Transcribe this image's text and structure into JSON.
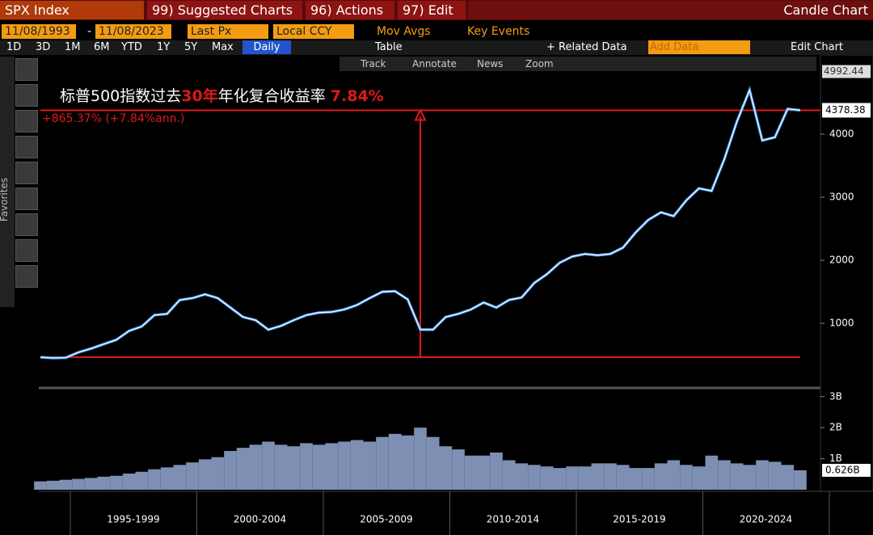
{
  "toolbar": {
    "security": "SPX Index",
    "menus": [
      "99) Suggested Charts",
      "96) Actions",
      "97) Edit"
    ],
    "chart_style": "Candle Chart",
    "start_date": "11/08/1993",
    "date_sep": "-",
    "end_date": "11/08/2023",
    "field": "Last Px",
    "currency": "Local CCY",
    "options": [
      "Mov Avgs",
      "Key Events"
    ],
    "periods": [
      "1D",
      "3D",
      "1M",
      "6M",
      "YTD",
      "1Y",
      "5Y",
      "Max"
    ],
    "frequency": "Daily",
    "table": "Table",
    "related": "+ Related Data",
    "add_data": "Add Data",
    "edit_chart": "Edit Chart",
    "tools": [
      "Track",
      "Annotate",
      "News",
      "Zoom"
    ],
    "favorites": "Favorites"
  },
  "chart_data": [
    {
      "type": "line",
      "title_parts": [
        "标普500指数过去",
        "30年",
        "年化复合收益率",
        "7.84%"
      ],
      "annotation": "+865.37% (+7.84%ann.)",
      "color": "#ffffff",
      "high_label": 4992.44,
      "values": [
        463,
        450,
        455,
        540,
        600,
        670,
        740,
        880,
        950,
        1130,
        1150,
        1370,
        1400,
        1460,
        1400,
        1250,
        1100,
        1050,
        900,
        960,
        1050,
        1130,
        1170,
        1180,
        1220,
        1290,
        1400,
        1500,
        1510,
        1380,
        900,
        900,
        1100,
        1150,
        1220,
        1330,
        1250,
        1370,
        1410,
        1640,
        1780,
        1960,
        2060,
        2100,
        2080,
        2100,
        2200,
        2440,
        2640,
        2760,
        2700,
        2950,
        3140,
        3100,
        3600,
        4200,
        4700,
        3900,
        3950,
        4400,
        4378.38
      ],
      "ylim": [
        40,
        5230
      ],
      "yticks": [
        1000,
        2000,
        3000,
        4000
      ],
      "x_axis_labels": [
        "1995-1999",
        "2000-2004",
        "2005-2009",
        "2010-2014",
        "2015-2019",
        "2020-2024"
      ]
    },
    {
      "type": "bar",
      "color": "#7d8fb3",
      "values": [
        0.27,
        0.29,
        0.32,
        0.35,
        0.38,
        0.42,
        0.45,
        0.52,
        0.58,
        0.66,
        0.72,
        0.8,
        0.88,
        0.98,
        1.05,
        1.25,
        1.35,
        1.45,
        1.55,
        1.45,
        1.4,
        1.5,
        1.45,
        1.5,
        1.55,
        1.6,
        1.55,
        1.7,
        1.8,
        1.75,
        2.0,
        1.7,
        1.4,
        1.3,
        1.1,
        1.1,
        1.2,
        0.95,
        0.85,
        0.8,
        0.75,
        0.7,
        0.75,
        0.75,
        0.85,
        0.85,
        0.8,
        0.7,
        0.7,
        0.85,
        0.95,
        0.8,
        0.75,
        1.1,
        0.95,
        0.85,
        0.8,
        0.95,
        0.9,
        0.8,
        0.626
      ],
      "value_labels": {
        "60": "0.626B"
      },
      "ylim": [
        0,
        3.15
      ],
      "yticks": [
        {
          "value": 1,
          "label": "1B"
        },
        {
          "value": 2,
          "label": "2B"
        },
        {
          "value": 3,
          "label": "3B"
        }
      ]
    }
  ]
}
